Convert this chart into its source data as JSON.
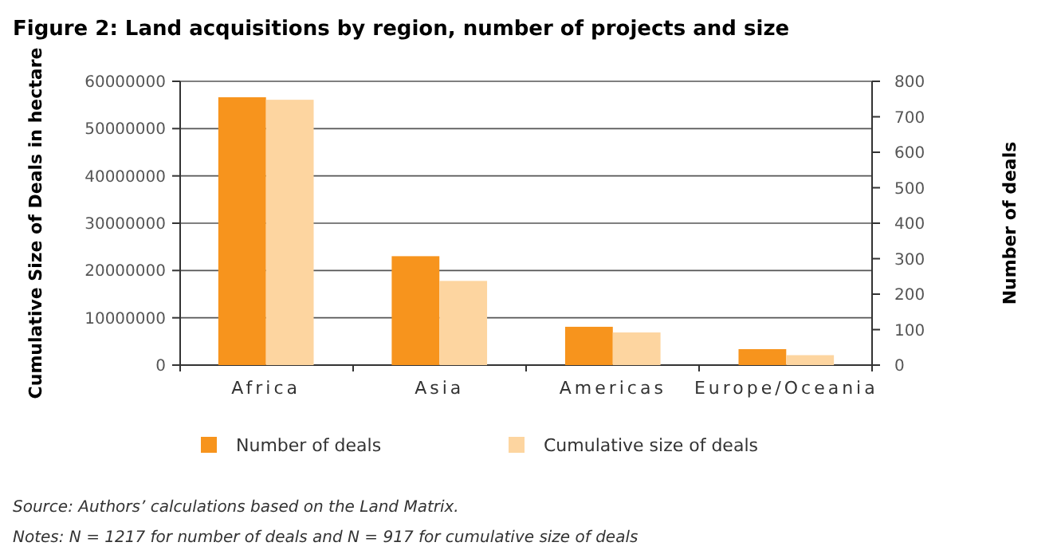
{
  "chart_data": {
    "type": "bar",
    "title": "Figure 2: Land acquisitions by region, number of projects and size",
    "ylabel": "Cumulative Size of Deals in hectare",
    "y2label": "Number of deals",
    "categories": [
      "Africa",
      "Asia",
      "Americas",
      "Europe/Oceania"
    ],
    "series": [
      {
        "name": "Number of deals",
        "color": "#f7941d",
        "axis": "y2",
        "values": [
          755,
          307,
          108,
          45
        ]
      },
      {
        "name": "Cumulative size of deals",
        "color": "#fdd5a0",
        "values": [
          56100000,
          17800000,
          6900000,
          2100000
        ]
      }
    ],
    "ylim": [
      0,
      60000000
    ],
    "yticks": [
      0,
      10000000,
      20000000,
      30000000,
      40000000,
      50000000,
      60000000
    ],
    "y2lim": [
      0,
      800
    ],
    "y2ticks": [
      0,
      100,
      200,
      300,
      400,
      500,
      600,
      700,
      800
    ],
    "grid": "y",
    "legend": "bottom",
    "annotations": [
      "Source: Authors’ calculations based on the Land Matrix.",
      "Notes: N = 1217 for number of deals and N = 917 for cumulative size of deals"
    ]
  }
}
